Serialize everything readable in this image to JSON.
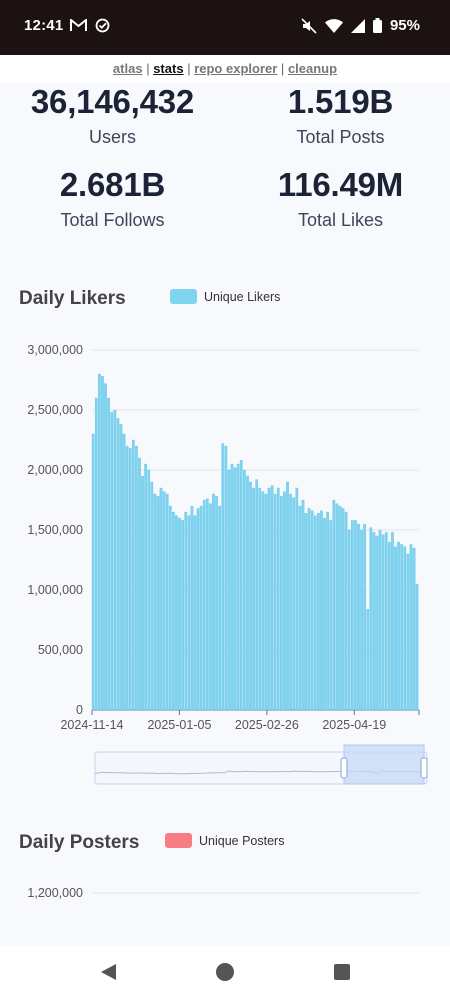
{
  "status_bar": {
    "time": "12:41",
    "battery": "95%"
  },
  "nav": {
    "links": [
      {
        "label": "atlas",
        "active": false
      },
      {
        "label": "stats",
        "active": true
      },
      {
        "label": "repo explorer",
        "active": false
      },
      {
        "label": "cleanup",
        "active": false
      }
    ],
    "separator": "|"
  },
  "stats": {
    "users": {
      "value": "36,146,432",
      "label": "Users"
    },
    "posts": {
      "value": "1.519B",
      "label": "Total Posts"
    },
    "follows": {
      "value": "2.681B",
      "label": "Total Follows"
    },
    "likes": {
      "value": "116.49M",
      "label": "Total Likes"
    }
  },
  "likers_section": {
    "title": "Daily Likers",
    "legend": "Unique Likers",
    "color": "#7fd3ef"
  },
  "posters_section": {
    "title": "Daily Posters",
    "legend": "Unique Posters",
    "color": "#f77d85"
  },
  "chart_data": [
    {
      "type": "bar",
      "title": "Daily Likers",
      "series": [
        {
          "name": "Unique Likers",
          "values": [
            2300000,
            2600000,
            2800000,
            2780000,
            2720000,
            2600000,
            2480000,
            2500000,
            2430000,
            2380000,
            2300000,
            2200000,
            2180000,
            2250000,
            2200000,
            2100000,
            1950000,
            2050000,
            2000000,
            1900000,
            1800000,
            1780000,
            1850000,
            1820000,
            1800000,
            1700000,
            1650000,
            1620000,
            1600000,
            1580000,
            1650000,
            1620000,
            1700000,
            1620000,
            1680000,
            1700000,
            1750000,
            1760000,
            1720000,
            1800000,
            1780000,
            1700000,
            2220000,
            2200000,
            2000000,
            2050000,
            2020000,
            2050000,
            2080000,
            2000000,
            1950000,
            1900000,
            1850000,
            1920000,
            1850000,
            1820000,
            1800000,
            1850000,
            1870000,
            1800000,
            1850000,
            1780000,
            1820000,
            1900000,
            1800000,
            1770000,
            1850000,
            1700000,
            1750000,
            1640000,
            1680000,
            1660000,
            1620000,
            1640000,
            1660000,
            1600000,
            1650000,
            1580000,
            1750000,
            1720000,
            1700000,
            1680000,
            1650000,
            1500000,
            1580000,
            1580000,
            1550000,
            1500000,
            1550000,
            840000,
            1520000,
            1480000,
            1450000,
            1500000,
            1460000,
            1480000,
            1400000,
            1480000,
            1360000,
            1400000,
            1380000,
            1360000,
            1300000,
            1380000,
            1350000,
            1050000
          ]
        }
      ],
      "x_tick_labels": [
        "2024-11-14",
        "2025-01-05",
        "2025-02-26",
        "2025-04-19"
      ],
      "y_tick_labels": [
        "0",
        "500,000",
        "1,000,000",
        "1,500,000",
        "2,000,000",
        "2,500,000",
        "3,000,000"
      ],
      "ylim": [
        0,
        3000000
      ],
      "grid": true,
      "legend": "top"
    },
    {
      "type": "bar",
      "title": "Daily Posters",
      "series": [
        {
          "name": "Unique Posters",
          "values": []
        }
      ],
      "y_tick_labels": [
        "1,200,000"
      ],
      "grid": true,
      "legend": "top"
    }
  ]
}
